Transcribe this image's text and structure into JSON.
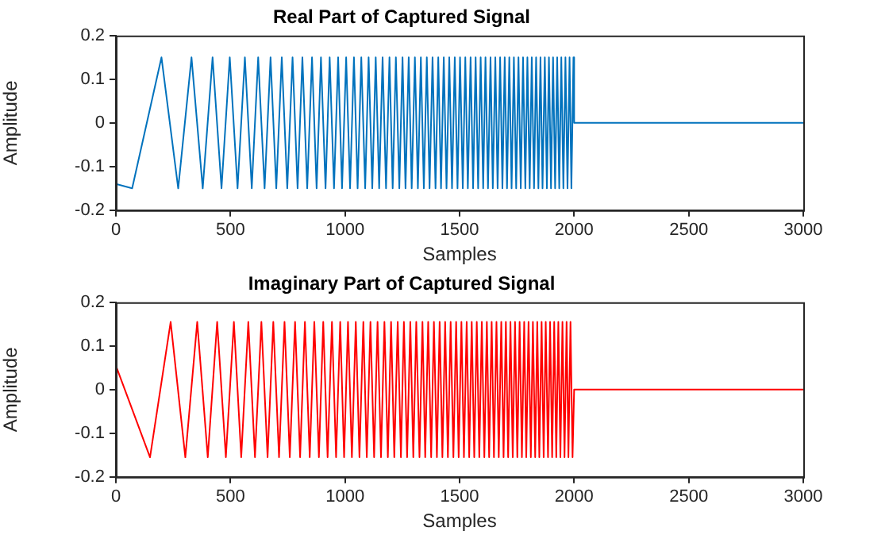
{
  "chart_data": [
    {
      "type": "line",
      "title": "Real Part of Captured Signal",
      "xlabel": "Samples",
      "ylabel": "Amplitude",
      "xlim": [
        0,
        3000
      ],
      "xticks": [
        0,
        500,
        1000,
        1500,
        2000,
        2500,
        3000
      ],
      "ylim": [
        -0.2,
        0.2
      ],
      "yticks": [
        -0.2,
        -0.1,
        0,
        0.1,
        0.2
      ],
      "grid": false,
      "legend": false,
      "marker": "none",
      "series": [
        {
          "color": "#0072bd",
          "x": [
            0,
            71,
            199,
            272,
            330,
            379,
            422,
            461,
            497,
            531,
            563,
            593,
            621,
            649,
            675,
            700,
            724,
            748,
            771,
            793,
            814,
            835,
            856,
            876,
            895,
            915,
            933,
            952,
            970,
            987,
            1005,
            1022,
            1039,
            1055,
            1071,
            1088,
            1103,
            1119,
            1134,
            1149,
            1164,
            1179,
            1194,
            1208,
            1222,
            1237,
            1251,
            1264,
            1278,
            1291,
            1305,
            1318,
            1331,
            1344,
            1357,
            1369,
            1382,
            1395,
            1407,
            1419,
            1431,
            1443,
            1455,
            1467,
            1479,
            1491,
            1502,
            1514,
            1525,
            1536,
            1548,
            1559,
            1570,
            1581,
            1592,
            1603,
            1613,
            1624,
            1635,
            1645,
            1656,
            1666,
            1677,
            1687,
            1697,
            1707,
            1717,
            1727,
            1737,
            1747,
            1757,
            1767,
            1777,
            1787,
            1796,
            1806,
            1815,
            1825,
            1834,
            1844,
            1853,
            1862,
            1872,
            1881,
            1890,
            1899,
            1908,
            1917,
            1926,
            1935,
            1944,
            1953,
            1962,
            1971,
            1980,
            1988,
            1997,
            2000,
            3000
          ],
          "values": [
            -0.14,
            -0.15,
            0.15,
            -0.15,
            0.15,
            -0.15,
            0.15,
            -0.15,
            0.15,
            -0.15,
            0.15,
            -0.15,
            0.15,
            -0.15,
            0.15,
            -0.15,
            0.15,
            -0.15,
            0.15,
            -0.15,
            0.15,
            -0.15,
            0.15,
            -0.15,
            0.15,
            -0.15,
            0.15,
            -0.15,
            0.15,
            -0.15,
            0.15,
            -0.15,
            0.15,
            -0.15,
            0.15,
            -0.15,
            0.15,
            -0.15,
            0.15,
            -0.15,
            0.15,
            -0.15,
            0.15,
            -0.15,
            0.15,
            -0.15,
            0.15,
            -0.15,
            0.15,
            -0.15,
            0.15,
            -0.15,
            0.15,
            -0.15,
            0.15,
            -0.15,
            0.15,
            -0.15,
            0.15,
            -0.15,
            0.15,
            -0.15,
            0.15,
            -0.15,
            0.15,
            -0.15,
            0.15,
            -0.15,
            0.15,
            -0.15,
            0.15,
            -0.15,
            0.15,
            -0.15,
            0.15,
            -0.15,
            0.15,
            -0.15,
            0.15,
            -0.15,
            0.15,
            -0.15,
            0.15,
            -0.15,
            0.15,
            -0.15,
            0.15,
            -0.15,
            0.15,
            -0.15,
            0.15,
            -0.15,
            0.15,
            -0.15,
            0.15,
            -0.15,
            0.15,
            -0.15,
            0.15,
            -0.15,
            0.15,
            -0.15,
            0.15,
            -0.15,
            0.15,
            -0.15,
            0.15,
            -0.15,
            0.15,
            -0.15,
            0.15,
            -0.15,
            0.15,
            -0.15,
            0.15,
            -0.15,
            0.15,
            0,
            0
          ]
        }
      ]
    },
    {
      "type": "line",
      "title": "Imaginary Part of Captured Signal",
      "xlabel": "Samples",
      "ylabel": "Amplitude",
      "xlim": [
        0,
        3000
      ],
      "xticks": [
        0,
        500,
        1000,
        1500,
        2000,
        2500,
        3000
      ],
      "ylim": [
        -0.2,
        0.2
      ],
      "yticks": [
        -0.2,
        -0.1,
        0,
        0.1,
        0.2
      ],
      "grid": false,
      "legend": false,
      "marker": "none",
      "series": [
        {
          "color": "#ff0000",
          "x": [
            0,
            149,
            239,
            303,
            355,
            401,
            442,
            480,
            515,
            547,
            578,
            607,
            635,
            662,
            687,
            712,
            736,
            759,
            782,
            804,
            825,
            846,
            866,
            886,
            905,
            924,
            943,
            961,
            979,
            996,
            1013,
            1030,
            1047,
            1063,
            1080,
            1095,
            1111,
            1127,
            1142,
            1157,
            1172,
            1187,
            1201,
            1215,
            1230,
            1244,
            1257,
            1271,
            1285,
            1298,
            1311,
            1325,
            1338,
            1350,
            1363,
            1376,
            1388,
            1401,
            1413,
            1425,
            1437,
            1449,
            1461,
            1473,
            1485,
            1496,
            1508,
            1519,
            1531,
            1542,
            1553,
            1564,
            1575,
            1586,
            1597,
            1608,
            1619,
            1629,
            1640,
            1650,
            1661,
            1671,
            1682,
            1692,
            1702,
            1712,
            1722,
            1732,
            1742,
            1752,
            1762,
            1772,
            1782,
            1791,
            1801,
            1811,
            1820,
            1830,
            1839,
            1848,
            1858,
            1867,
            1876,
            1886,
            1895,
            1904,
            1913,
            1922,
            1931,
            1940,
            1949,
            1958,
            1967,
            1975,
            1984,
            1993,
            2000,
            3000
          ],
          "values": [
            0.055,
            -0.155,
            0.155,
            -0.155,
            0.155,
            -0.155,
            0.155,
            -0.155,
            0.155,
            -0.155,
            0.155,
            -0.155,
            0.155,
            -0.155,
            0.155,
            -0.155,
            0.155,
            -0.155,
            0.155,
            -0.155,
            0.155,
            -0.155,
            0.155,
            -0.155,
            0.155,
            -0.155,
            0.155,
            -0.155,
            0.155,
            -0.155,
            0.155,
            -0.155,
            0.155,
            -0.155,
            0.155,
            -0.155,
            0.155,
            -0.155,
            0.155,
            -0.155,
            0.155,
            -0.155,
            0.155,
            -0.155,
            0.155,
            -0.155,
            0.155,
            -0.155,
            0.155,
            -0.155,
            0.155,
            -0.155,
            0.155,
            -0.155,
            0.155,
            -0.155,
            0.155,
            -0.155,
            0.155,
            -0.155,
            0.155,
            -0.155,
            0.155,
            -0.155,
            0.155,
            -0.155,
            0.155,
            -0.155,
            0.155,
            -0.155,
            0.155,
            -0.155,
            0.155,
            -0.155,
            0.155,
            -0.155,
            0.155,
            -0.155,
            0.155,
            -0.155,
            0.155,
            -0.155,
            0.155,
            -0.155,
            0.155,
            -0.155,
            0.155,
            -0.155,
            0.155,
            -0.155,
            0.155,
            -0.155,
            0.155,
            -0.155,
            0.155,
            -0.155,
            0.155,
            -0.155,
            0.155,
            -0.155,
            0.155,
            -0.155,
            0.155,
            -0.155,
            0.155,
            -0.155,
            0.155,
            -0.155,
            0.155,
            -0.155,
            0.155,
            -0.155,
            0.155,
            -0.155,
            0.155,
            -0.155,
            0,
            0
          ]
        }
      ]
    }
  ]
}
